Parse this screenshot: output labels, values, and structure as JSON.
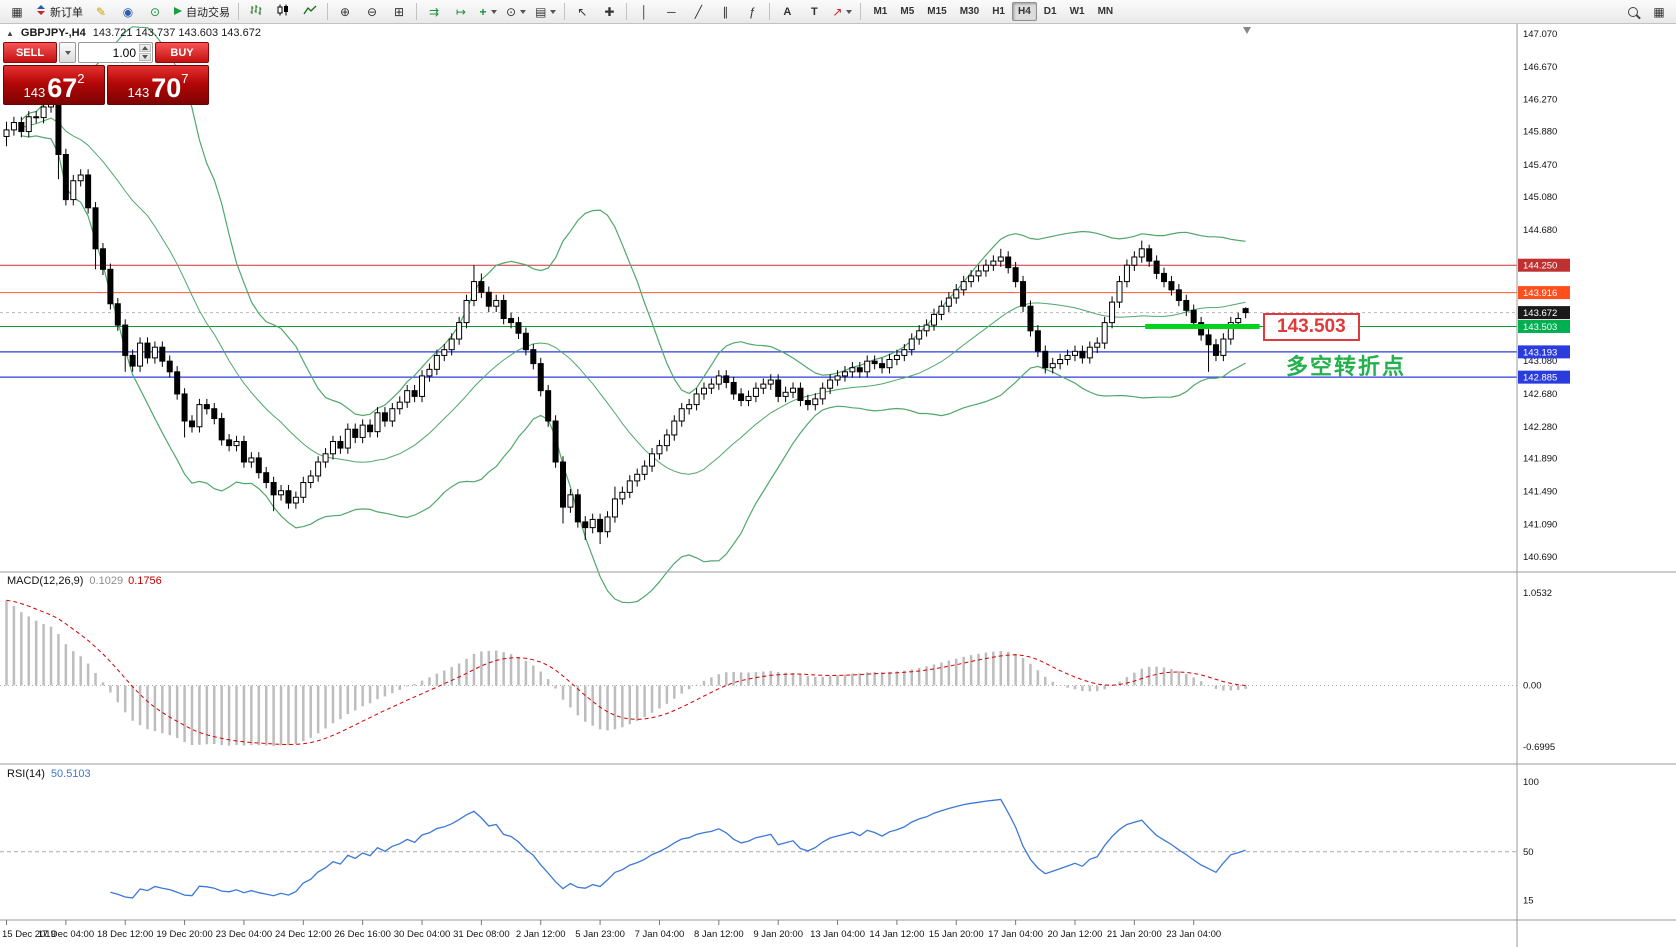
{
  "toolbar": {
    "new_order_label": "新订单",
    "autotrading_label": "自动交易",
    "timeframes": [
      "M1",
      "M5",
      "M15",
      "M30",
      "H1",
      "H4",
      "D1",
      "W1",
      "MN"
    ],
    "active_timeframe": "H4"
  },
  "chart": {
    "symbol_period": "GBPJPY-,H4",
    "ohlc_line": "143.721 143.737 143.603 143.672"
  },
  "one_click": {
    "sell_label": "SELL",
    "buy_label": "BUY",
    "volume": "1.00",
    "sell_price": {
      "main": "143",
      "big": "67",
      "sup": "2"
    },
    "buy_price": {
      "main": "143",
      "big": "70",
      "sup": "7"
    }
  },
  "annotations": {
    "price_label": "143.503",
    "price_label_color": "#e03a3a",
    "turning_point_label": "多空转折点",
    "turning_point_color": "#22b14c"
  },
  "indicators_labels": {
    "macd_name": "MACD(12,26,9)",
    "macd_value1": "0.1029",
    "macd_value2": "0.1756",
    "rsi_name": "RSI(14)",
    "rsi_value": "50.5103"
  },
  "chart_data": {
    "type": "candlestick",
    "symbol": "GBPJPY-",
    "timeframe": "H4",
    "ylim": [
      140.521,
      147.167
    ],
    "grid": false,
    "price_ticks": [
      "147.070",
      "146.670",
      "146.270",
      "145.880",
      "145.470",
      "145.080",
      "144.680",
      "143.080",
      "142.680",
      "142.280",
      "141.890",
      "141.490",
      "141.090",
      "140.690"
    ],
    "price_badges": [
      {
        "text": "144.250",
        "color": "#c03030"
      },
      {
        "text": "143.916",
        "color": "#ff4f1f"
      },
      {
        "text": "143.672",
        "color": "#1a1a1a"
      },
      {
        "text": "143.503",
        "color": "#00b050"
      },
      {
        "text": "143.193",
        "color": "#2b3cdf"
      },
      {
        "text": "142.885",
        "color": "#2b3cdf"
      }
    ],
    "hlines": [
      {
        "price": 144.25,
        "color": "#cc3333",
        "width": 1
      },
      {
        "price": 143.916,
        "color": "#ff5a2a",
        "width": 1
      },
      {
        "price": 143.503,
        "color": "#119933",
        "width": 1
      },
      {
        "price": 143.193,
        "color": "#2b3cdf",
        "width": 1.2
      },
      {
        "price": 142.885,
        "color": "#2b3cdf",
        "width": 1.2
      }
    ],
    "bid_line": {
      "price": 143.672,
      "color": "#b8b8b8"
    },
    "highlight_segment": {
      "price": 143.503,
      "from_index": 154,
      "color": "#00d21e",
      "width": 5
    },
    "bollinger": {
      "period": 20,
      "deviation": 2,
      "color": "#4fa86a"
    },
    "macd": {
      "fast": 12,
      "slow": 26,
      "signal": 9,
      "hist_color": "#bdbdbd",
      "signal_color": "#d40000",
      "scale_ticks": [
        "1.0532",
        "0.00",
        "-0.6995"
      ]
    },
    "rsi": {
      "period": 14,
      "color": "#3c78d8",
      "scale_ticks": [
        "100",
        "50",
        "15"
      ]
    },
    "time_labels": [
      "15 Dec 2019",
      "17 Dec 04:00",
      "18 Dec 12:00",
      "19 Dec 20:00",
      "23 Dec 04:00",
      "24 Dec 12:00",
      "26 Dec 16:00",
      "30 Dec 04:00",
      "31 Dec 08:00",
      "2 Jan 12:00",
      "5 Jan 23:00",
      "7 Jan 04:00",
      "8 Jan 12:00",
      "9 Jan 20:00",
      "13 Jan 04:00",
      "14 Jan 12:00",
      "15 Jan 20:00",
      "17 Jan 04:00",
      "20 Jan 12:00",
      "21 Jan 20:00",
      "23 Jan 04:00"
    ],
    "candles": [
      [
        145.82,
        146.0,
        145.7,
        145.9
      ],
      [
        145.9,
        146.06,
        145.83,
        145.99
      ],
      [
        145.99,
        146.06,
        145.81,
        145.88
      ],
      [
        145.88,
        146.13,
        145.81,
        146.06
      ],
      [
        146.06,
        146.13,
        145.98,
        146.05
      ],
      [
        146.05,
        146.25,
        145.98,
        146.18
      ],
      [
        146.18,
        146.32,
        146.11,
        146.25
      ],
      [
        146.25,
        146.32,
        145.3,
        145.6
      ],
      [
        145.6,
        145.67,
        144.98,
        145.05
      ],
      [
        145.05,
        145.35,
        144.98,
        145.28
      ],
      [
        145.28,
        145.42,
        145.21,
        145.35
      ],
      [
        145.35,
        145.42,
        144.88,
        144.95
      ],
      [
        144.95,
        145.02,
        144.2,
        144.45
      ],
      [
        144.45,
        144.52,
        144.13,
        144.2
      ],
      [
        144.2,
        144.27,
        143.71,
        143.78
      ],
      [
        143.78,
        143.85,
        143.45,
        143.52
      ],
      [
        143.52,
        143.59,
        142.95,
        143.15
      ],
      [
        143.15,
        143.22,
        142.95,
        143.02
      ],
      [
        143.02,
        143.37,
        142.95,
        143.3
      ],
      [
        143.3,
        143.37,
        143.05,
        143.12
      ],
      [
        143.12,
        143.32,
        143.05,
        143.25
      ],
      [
        143.25,
        143.32,
        143.01,
        143.08
      ],
      [
        143.08,
        143.15,
        142.88,
        142.95
      ],
      [
        142.95,
        143.02,
        142.61,
        142.68
      ],
      [
        142.68,
        142.75,
        142.15,
        142.35
      ],
      [
        142.35,
        142.42,
        142.21,
        142.28
      ],
      [
        142.28,
        142.62,
        142.21,
        142.55
      ],
      [
        142.55,
        142.62,
        142.43,
        142.5
      ],
      [
        142.5,
        142.57,
        142.31,
        142.38
      ],
      [
        142.38,
        142.45,
        142.05,
        142.12
      ],
      [
        142.12,
        142.19,
        141.98,
        142.05
      ],
      [
        142.05,
        142.17,
        141.98,
        142.1
      ],
      [
        142.1,
        142.17,
        141.78,
        141.85
      ],
      [
        141.85,
        141.97,
        141.78,
        141.9
      ],
      [
        141.9,
        141.97,
        141.65,
        141.72
      ],
      [
        141.72,
        141.79,
        141.53,
        141.6
      ],
      [
        141.6,
        141.67,
        141.25,
        141.45
      ],
      [
        141.45,
        141.57,
        141.38,
        141.5
      ],
      [
        141.5,
        141.57,
        141.28,
        141.35
      ],
      [
        141.35,
        141.49,
        141.28,
        141.42
      ],
      [
        141.42,
        141.67,
        141.35,
        141.6
      ],
      [
        141.6,
        141.75,
        141.53,
        141.68
      ],
      [
        141.68,
        141.92,
        141.61,
        141.85
      ],
      [
        141.85,
        142.02,
        141.78,
        141.95
      ],
      [
        141.95,
        142.17,
        141.88,
        142.1
      ],
      [
        142.1,
        142.17,
        141.95,
        142.02
      ],
      [
        142.02,
        142.32,
        141.95,
        142.25
      ],
      [
        142.25,
        142.32,
        142.08,
        142.15
      ],
      [
        142.15,
        142.37,
        142.08,
        142.3
      ],
      [
        142.3,
        142.37,
        142.15,
        142.22
      ],
      [
        142.22,
        142.52,
        142.15,
        142.45
      ],
      [
        142.45,
        142.52,
        142.28,
        142.35
      ],
      [
        142.35,
        142.57,
        142.28,
        142.5
      ],
      [
        142.5,
        142.65,
        142.43,
        142.58
      ],
      [
        142.58,
        142.79,
        142.51,
        142.72
      ],
      [
        142.72,
        142.79,
        142.58,
        142.65
      ],
      [
        142.65,
        142.97,
        142.58,
        142.9
      ],
      [
        142.9,
        143.05,
        142.83,
        142.98
      ],
      [
        142.98,
        143.22,
        142.91,
        143.15
      ],
      [
        143.15,
        143.29,
        143.08,
        143.22
      ],
      [
        143.22,
        143.42,
        143.15,
        143.35
      ],
      [
        143.35,
        143.62,
        143.28,
        143.55
      ],
      [
        143.55,
        143.89,
        143.48,
        143.82
      ],
      [
        143.82,
        144.25,
        143.75,
        144.05
      ],
      [
        144.05,
        144.15,
        143.85,
        143.92
      ],
      [
        143.92,
        143.99,
        143.68,
        143.75
      ],
      [
        143.75,
        143.89,
        143.68,
        143.82
      ],
      [
        143.82,
        143.89,
        143.53,
        143.6
      ],
      [
        143.6,
        143.67,
        143.48,
        143.55
      ],
      [
        143.55,
        143.62,
        143.35,
        143.42
      ],
      [
        143.42,
        143.49,
        143.15,
        143.22
      ],
      [
        143.22,
        143.29,
        142.98,
        143.05
      ],
      [
        143.05,
        143.12,
        142.65,
        142.72
      ],
      [
        142.72,
        142.79,
        142.28,
        142.35
      ],
      [
        142.35,
        142.42,
        141.78,
        141.85
      ],
      [
        141.85,
        141.92,
        141.1,
        141.3
      ],
      [
        141.3,
        141.52,
        141.23,
        141.45
      ],
      [
        141.45,
        141.52,
        141.05,
        141.12
      ],
      [
        141.12,
        141.19,
        140.9,
        141.05
      ],
      [
        141.05,
        141.22,
        140.98,
        141.15
      ],
      [
        141.15,
        141.22,
        140.85,
        141.0
      ],
      [
        141.0,
        141.25,
        140.93,
        141.18
      ],
      [
        141.18,
        141.55,
        141.11,
        141.4
      ],
      [
        141.4,
        141.55,
        141.33,
        141.48
      ],
      [
        141.48,
        141.69,
        141.41,
        141.62
      ],
      [
        141.62,
        141.77,
        141.55,
        141.7
      ],
      [
        141.7,
        141.87,
        141.63,
        141.8
      ],
      [
        141.8,
        142.02,
        141.73,
        141.95
      ],
      [
        141.95,
        142.12,
        141.88,
        142.05
      ],
      [
        142.05,
        142.25,
        141.98,
        142.18
      ],
      [
        142.18,
        142.42,
        142.11,
        142.35
      ],
      [
        142.35,
        142.57,
        142.28,
        142.5
      ],
      [
        142.5,
        142.62,
        142.43,
        142.55
      ],
      [
        142.55,
        142.75,
        142.48,
        142.68
      ],
      [
        142.68,
        142.82,
        142.61,
        142.75
      ],
      [
        142.75,
        142.87,
        142.68,
        142.8
      ],
      [
        142.8,
        142.97,
        142.73,
        142.9
      ],
      [
        142.9,
        142.97,
        142.75,
        142.82
      ],
      [
        142.82,
        142.89,
        142.61,
        142.68
      ],
      [
        142.68,
        142.75,
        142.53,
        142.6
      ],
      [
        142.6,
        142.72,
        142.53,
        142.65
      ],
      [
        142.65,
        142.82,
        142.58,
        142.75
      ],
      [
        142.75,
        142.87,
        142.68,
        142.8
      ],
      [
        142.8,
        142.92,
        142.73,
        142.85
      ],
      [
        142.85,
        142.92,
        142.58,
        142.65
      ],
      [
        142.65,
        142.77,
        142.58,
        142.7
      ],
      [
        142.7,
        142.82,
        142.63,
        142.75
      ],
      [
        142.75,
        142.82,
        142.53,
        142.6
      ],
      [
        142.6,
        142.67,
        142.48,
        142.55
      ],
      [
        142.55,
        142.69,
        142.48,
        142.62
      ],
      [
        142.62,
        142.82,
        142.55,
        142.75
      ],
      [
        142.75,
        142.92,
        142.68,
        142.85
      ],
      [
        142.85,
        142.97,
        142.78,
        142.9
      ],
      [
        142.9,
        143.02,
        142.83,
        142.95
      ],
      [
        142.95,
        143.07,
        142.88,
        143.0
      ],
      [
        143.0,
        143.07,
        142.88,
        142.95
      ],
      [
        142.95,
        143.15,
        142.88,
        143.08
      ],
      [
        143.08,
        143.15,
        142.98,
        143.05
      ],
      [
        143.05,
        143.12,
        142.93,
        143.0
      ],
      [
        143.0,
        143.17,
        142.93,
        143.1
      ],
      [
        143.1,
        143.22,
        143.03,
        143.15
      ],
      [
        143.15,
        143.29,
        143.08,
        143.22
      ],
      [
        143.22,
        143.42,
        143.15,
        143.35
      ],
      [
        143.35,
        143.52,
        143.28,
        143.45
      ],
      [
        143.45,
        143.59,
        143.38,
        143.52
      ],
      [
        143.52,
        143.72,
        143.45,
        143.65
      ],
      [
        143.65,
        143.82,
        143.58,
        143.75
      ],
      [
        143.75,
        143.92,
        143.68,
        143.85
      ],
      [
        143.85,
        144.02,
        143.78,
        143.95
      ],
      [
        143.95,
        144.12,
        143.88,
        144.05
      ],
      [
        144.05,
        144.19,
        143.98,
        144.12
      ],
      [
        144.12,
        144.25,
        144.05,
        144.18
      ],
      [
        144.18,
        144.32,
        144.11,
        144.25
      ],
      [
        144.25,
        144.37,
        144.18,
        144.3
      ],
      [
        144.3,
        144.45,
        144.23,
        144.35
      ],
      [
        144.35,
        144.42,
        144.15,
        144.22
      ],
      [
        144.22,
        144.29,
        143.98,
        144.05
      ],
      [
        144.05,
        144.12,
        143.68,
        143.75
      ],
      [
        143.75,
        143.82,
        143.38,
        143.45
      ],
      [
        143.45,
        143.52,
        143.13,
        143.2
      ],
      [
        143.2,
        143.27,
        142.93,
        143.0
      ],
      [
        143.0,
        143.12,
        142.93,
        143.05
      ],
      [
        143.05,
        143.17,
        142.98,
        143.1
      ],
      [
        143.1,
        143.22,
        143.03,
        143.15
      ],
      [
        143.15,
        143.27,
        143.08,
        143.2
      ],
      [
        143.2,
        143.27,
        143.05,
        143.12
      ],
      [
        143.12,
        143.32,
        143.05,
        143.25
      ],
      [
        143.25,
        143.37,
        143.18,
        143.3
      ],
      [
        143.3,
        143.62,
        143.23,
        143.55
      ],
      [
        143.55,
        143.87,
        143.48,
        143.8
      ],
      [
        143.8,
        144.12,
        143.73,
        144.05
      ],
      [
        144.05,
        144.32,
        143.98,
        144.25
      ],
      [
        144.25,
        144.42,
        144.18,
        144.35
      ],
      [
        144.35,
        144.55,
        144.28,
        144.45
      ],
      [
        144.45,
        144.5,
        144.23,
        144.3
      ],
      [
        144.3,
        144.37,
        144.08,
        144.15
      ],
      [
        144.15,
        144.22,
        143.98,
        144.05
      ],
      [
        144.05,
        144.12,
        143.88,
        143.95
      ],
      [
        143.95,
        144.02,
        143.75,
        143.82
      ],
      [
        143.82,
        143.89,
        143.63,
        143.7
      ],
      [
        143.7,
        143.77,
        143.48,
        143.55
      ],
      [
        143.55,
        143.62,
        143.33,
        143.4
      ],
      [
        143.4,
        143.47,
        142.95,
        143.28
      ],
      [
        143.28,
        143.35,
        143.08,
        143.15
      ],
      [
        143.15,
        143.42,
        143.08,
        143.35
      ],
      [
        143.35,
        143.62,
        143.28,
        143.55
      ],
      [
        143.55,
        143.67,
        143.48,
        143.6
      ],
      [
        143.721,
        143.737,
        143.603,
        143.672
      ]
    ]
  }
}
